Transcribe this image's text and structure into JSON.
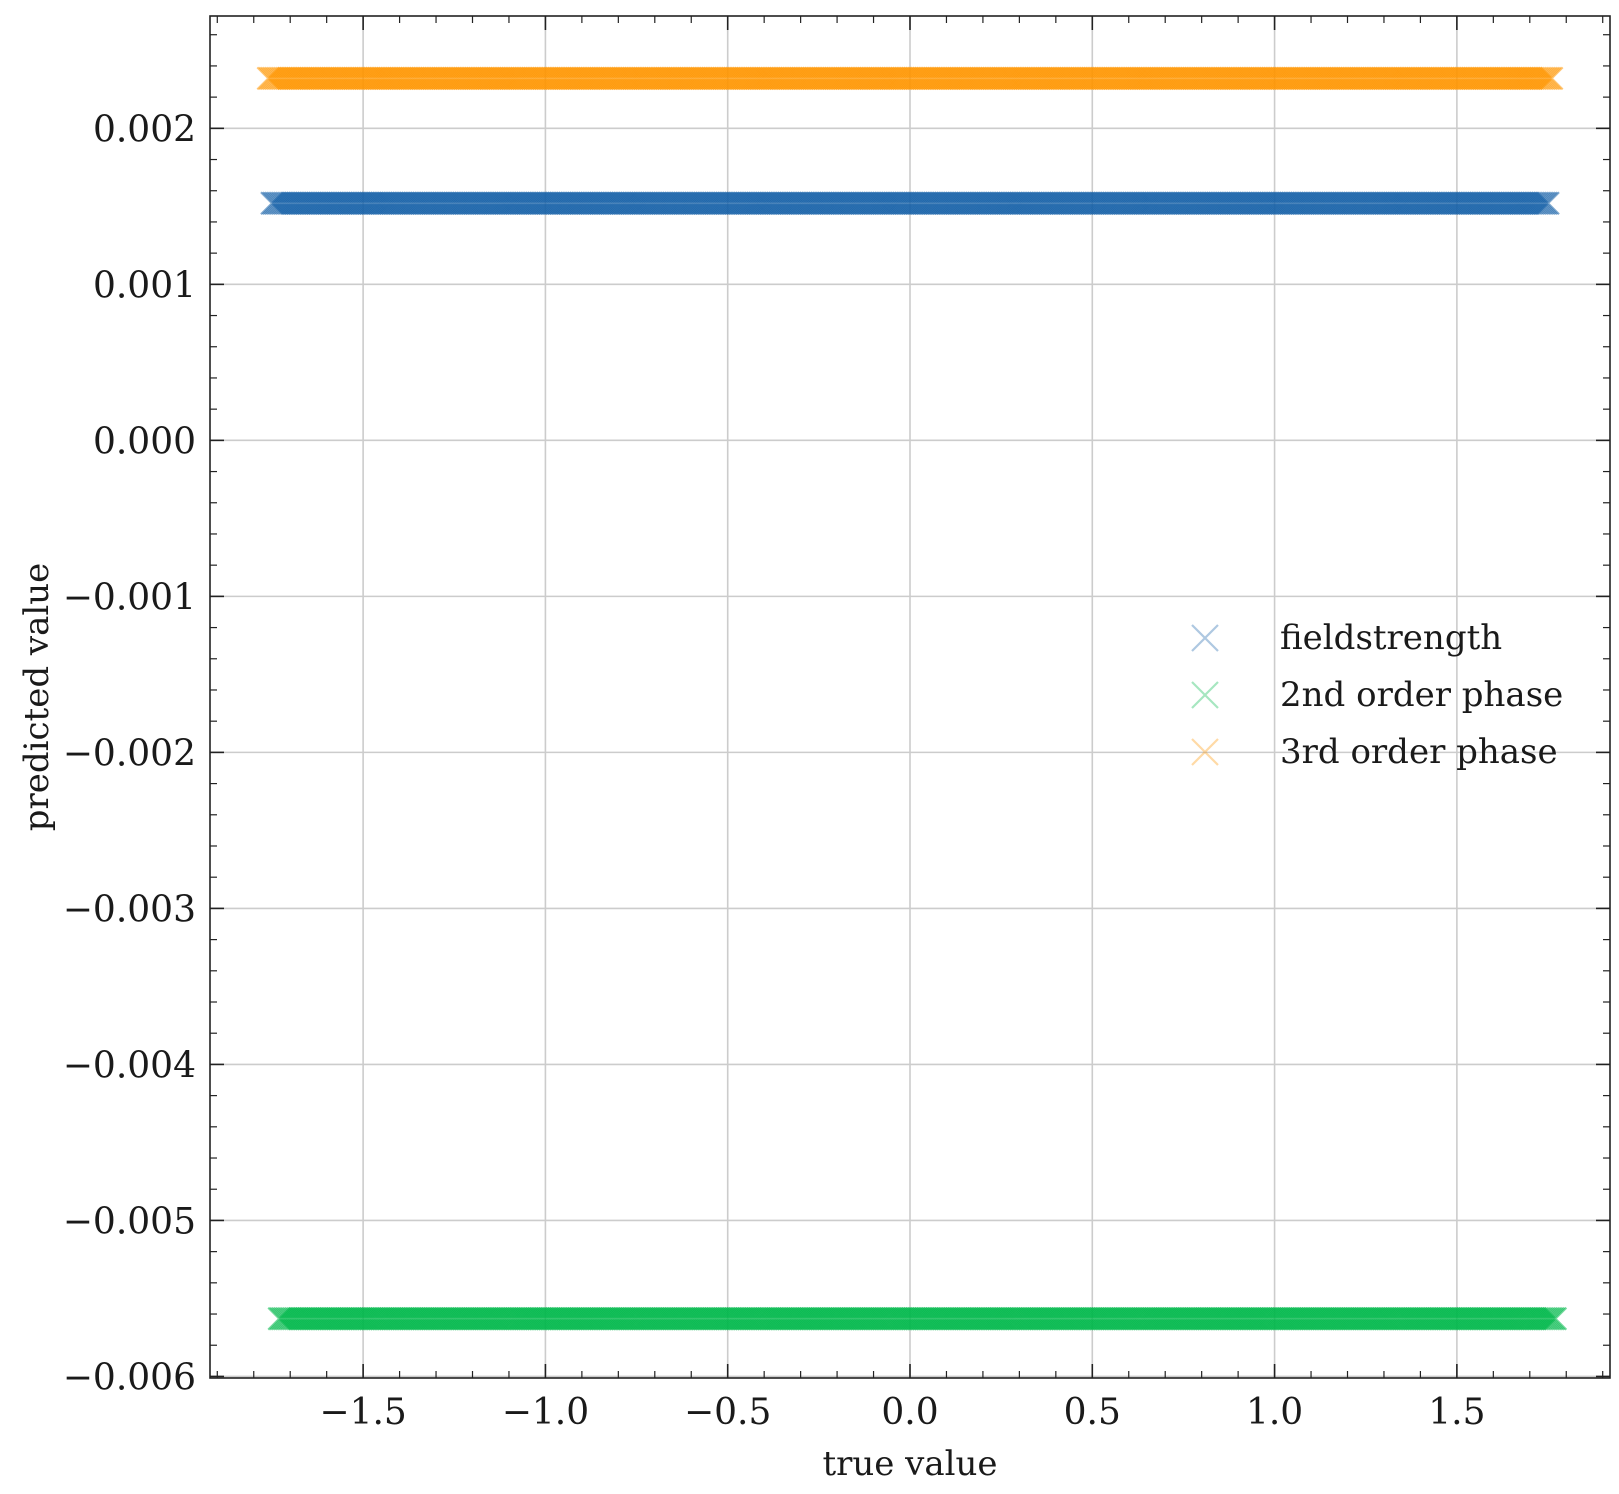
{
  "chart_data": {
    "type": "scatter",
    "title": "",
    "xlabel": "true value",
    "ylabel": "predicted value",
    "xlim": [
      -1.92,
      1.92
    ],
    "ylim": [
      -0.00601,
      0.00272
    ],
    "grid": true,
    "marker": "x",
    "legend_position": "center-right",
    "x_ticks": [
      {
        "value": -1.5,
        "label": "−1.5"
      },
      {
        "value": -1.0,
        "label": "−1.0"
      },
      {
        "value": -0.5,
        "label": "−0.5"
      },
      {
        "value": 0.0,
        "label": "0.0"
      },
      {
        "value": 0.5,
        "label": "0.5"
      },
      {
        "value": 1.0,
        "label": "1.0"
      },
      {
        "value": 1.5,
        "label": "1.5"
      }
    ],
    "y_ticks": [
      {
        "value": 0.002,
        "label": "0.002"
      },
      {
        "value": 0.001,
        "label": "0.001"
      },
      {
        "value": 0.0,
        "label": "0.000"
      },
      {
        "value": -0.001,
        "label": "−0.001"
      },
      {
        "value": -0.002,
        "label": "−0.002"
      },
      {
        "value": -0.003,
        "label": "−0.003"
      },
      {
        "value": -0.004,
        "label": "−0.004"
      },
      {
        "value": -0.005,
        "label": "−0.005"
      },
      {
        "value": -0.006,
        "label": "−0.006"
      }
    ],
    "series": [
      {
        "name": "fieldstrength",
        "color": "#1660a8",
        "y": 0.00152,
        "x_range": [
          -1.75,
          1.75
        ]
      },
      {
        "name": "2nd order phase",
        "color": "#00b84a",
        "y": -0.00563,
        "x_range": [
          -1.73,
          1.77
        ]
      },
      {
        "name": "3rd order phase",
        "color": "#ff9500",
        "y": 0.00232,
        "x_range": [
          -1.76,
          1.76
        ]
      }
    ]
  }
}
